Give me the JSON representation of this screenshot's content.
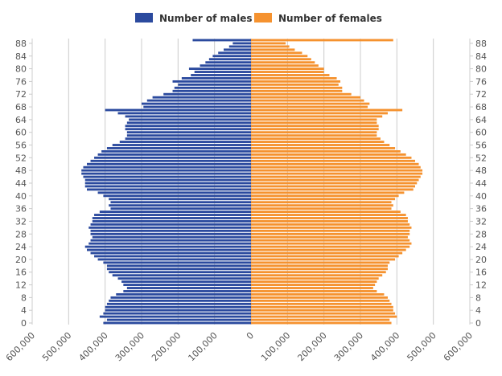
{
  "chart_data": {
    "type": "bar",
    "orientation": "horizontal",
    "title": "",
    "xlabel": "",
    "ylabel": "",
    "xlim": [
      -600000,
      600000
    ],
    "ylim": [
      0,
      90
    ],
    "x_ticks": [
      "600,000",
      "500,000",
      "400,000",
      "300,000",
      "200,000",
      "100,000",
      "0",
      "100,000",
      "200,000",
      "300,000",
      "400,000",
      "500,000",
      "600,000"
    ],
    "y_ticks": [
      "88",
      "84",
      "80",
      "76",
      "72",
      "68",
      "64",
      "60",
      "56",
      "52",
      "48",
      "44",
      "40",
      "36",
      "32",
      "28",
      "24",
      "20",
      "16",
      "12",
      "8",
      "4",
      "0"
    ],
    "legend": {
      "position": "top"
    },
    "grid": true,
    "ages": [
      0,
      1,
      2,
      3,
      4,
      5,
      6,
      7,
      8,
      9,
      10,
      11,
      12,
      13,
      14,
      15,
      16,
      17,
      18,
      19,
      20,
      21,
      22,
      23,
      24,
      25,
      26,
      27,
      28,
      29,
      30,
      31,
      32,
      33,
      34,
      35,
      36,
      37,
      38,
      39,
      40,
      41,
      42,
      43,
      44,
      45,
      46,
      47,
      48,
      49,
      50,
      51,
      52,
      53,
      54,
      55,
      56,
      57,
      58,
      59,
      60,
      61,
      62,
      63,
      64,
      65,
      66,
      67,
      68,
      69,
      70,
      71,
      72,
      73,
      74,
      75,
      76,
      77,
      78,
      79,
      80,
      81,
      82,
      83,
      84,
      85,
      86,
      87,
      88,
      89
    ],
    "series": [
      {
        "name": "Number of males",
        "color": "#2b4a9e",
        "values": [
          405000,
          395000,
          415000,
          405000,
          400000,
          400000,
          395000,
          390000,
          385000,
          370000,
          350000,
          340000,
          350000,
          355000,
          365000,
          380000,
          390000,
          395000,
          395000,
          405000,
          420000,
          430000,
          440000,
          450000,
          455000,
          445000,
          440000,
          435000,
          440000,
          440000,
          445000,
          440000,
          435000,
          435000,
          430000,
          415000,
          385000,
          390000,
          385000,
          390000,
          405000,
          420000,
          450000,
          455000,
          455000,
          455000,
          460000,
          465000,
          465000,
          460000,
          450000,
          440000,
          430000,
          420000,
          410000,
          395000,
          380000,
          360000,
          345000,
          340000,
          340000,
          345000,
          345000,
          340000,
          335000,
          345000,
          365000,
          400000,
          295000,
          300000,
          285000,
          270000,
          240000,
          215000,
          210000,
          200000,
          215000,
          190000,
          165000,
          155000,
          170000,
          140000,
          125000,
          115000,
          105000,
          90000,
          75000,
          60000,
          50000,
          160000
        ]
      },
      {
        "name": "Number of females",
        "color": "#f5922f",
        "values": [
          385000,
          380000,
          400000,
          395000,
          390000,
          390000,
          385000,
          380000,
          375000,
          365000,
          345000,
          335000,
          340000,
          345000,
          350000,
          360000,
          370000,
          375000,
          375000,
          380000,
          395000,
          405000,
          415000,
          425000,
          435000,
          440000,
          435000,
          430000,
          435000,
          435000,
          440000,
          435000,
          430000,
          430000,
          425000,
          410000,
          385000,
          390000,
          385000,
          395000,
          405000,
          420000,
          445000,
          450000,
          455000,
          460000,
          465000,
          470000,
          470000,
          465000,
          460000,
          450000,
          440000,
          425000,
          410000,
          395000,
          380000,
          365000,
          355000,
          345000,
          345000,
          350000,
          350000,
          345000,
          345000,
          360000,
          375000,
          415000,
          320000,
          325000,
          310000,
          300000,
          275000,
          250000,
          250000,
          240000,
          245000,
          235000,
          215000,
          200000,
          200000,
          185000,
          175000,
          165000,
          155000,
          140000,
          120000,
          105000,
          95000,
          390000
        ]
      }
    ]
  }
}
